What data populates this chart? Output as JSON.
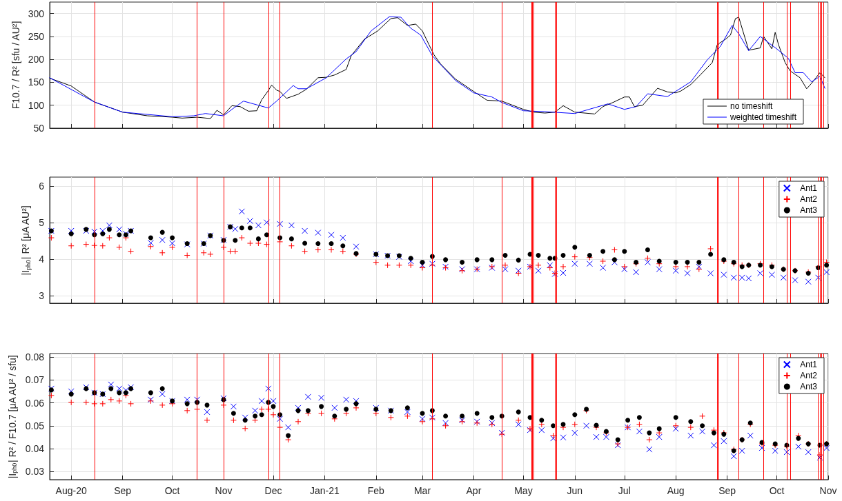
{
  "chart_data": [
    {
      "type": "line",
      "ylabel": "F10.7 / R² [sfu / AU²]",
      "xlim": [
        "2020-07-19",
        "2021-11-01"
      ],
      "ylim": [
        50,
        325
      ],
      "yticks": [
        50,
        100,
        150,
        200,
        250,
        300
      ],
      "xticks": [
        {
          "value": "2020-08-01",
          "label": null
        },
        {
          "value": "2020-09-01",
          "label": null
        },
        {
          "value": "2020-10-01",
          "label": null
        },
        {
          "value": "2020-11-01",
          "label": null
        },
        {
          "value": "2020-12-01",
          "label": null
        },
        {
          "value": "2021-01-01",
          "label": null
        },
        {
          "value": "2021-02-01",
          "label": null
        },
        {
          "value": "2021-03-01",
          "label": null
        },
        {
          "value": "2021-04-01",
          "label": null
        },
        {
          "value": "2021-05-01",
          "label": null
        },
        {
          "value": "2021-06-01",
          "label": null
        },
        {
          "value": "2021-07-01",
          "label": null
        },
        {
          "value": "2021-08-01",
          "label": null
        },
        {
          "value": "2021-09-01",
          "label": null
        },
        {
          "value": "2021-10-01",
          "label": null
        },
        {
          "value": "2021-11-01",
          "label": null
        }
      ],
      "tick_labels": "y",
      "grid": true,
      "legend": "bottom right",
      "marker": "none",
      "line_style": "solid",
      "series": [
        {
          "name": "no timeshift",
          "color": "#000000",
          "x": [
            "2020-07-19",
            "2020-08-01",
            "2020-08-15",
            "2020-09-01",
            "2020-09-16",
            "2020-10-01",
            "2020-10-07",
            "2020-10-16",
            "2020-10-24",
            "2020-10-28",
            "2020-11-01",
            "2020-11-06",
            "2020-11-11",
            "2020-11-16",
            "2020-11-21",
            "2020-11-24",
            "2020-11-28",
            "2020-11-30",
            "2020-12-03",
            "2020-12-05",
            "2020-12-09",
            "2020-12-16",
            "2020-12-21",
            "2020-12-28",
            "2021-01-02",
            "2021-01-07",
            "2021-01-14",
            "2021-01-17",
            "2021-01-25",
            "2021-02-02",
            "2021-02-10",
            "2021-02-14",
            "2021-02-20",
            "2021-02-25",
            "2021-03-01",
            "2021-03-05",
            "2021-03-08",
            "2021-03-12",
            "2021-03-21",
            "2021-04-01",
            "2021-04-09",
            "2021-04-18",
            "2021-05-01",
            "2021-05-07",
            "2021-05-14",
            "2021-05-20",
            "2021-05-25",
            "2021-06-01",
            "2021-06-13",
            "2021-06-18",
            "2021-06-24",
            "2021-07-01",
            "2021-07-04",
            "2021-07-07",
            "2021-07-12",
            "2021-07-21",
            "2021-07-27",
            "2021-08-01",
            "2021-08-04",
            "2021-08-10",
            "2021-08-16",
            "2021-08-23",
            "2021-08-26",
            "2021-08-31",
            "2021-09-03",
            "2021-09-06",
            "2021-09-08",
            "2021-09-14",
            "2021-09-21",
            "2021-09-23",
            "2021-09-28",
            "2021-09-30",
            "2021-10-02",
            "2021-10-06",
            "2021-10-09",
            "2021-10-15",
            "2021-10-19",
            "2021-10-22",
            "2021-10-27",
            "2021-10-30"
          ],
          "values": [
            159,
            142,
            107,
            85,
            77,
            74,
            72,
            74,
            71,
            89,
            79,
            99,
            97,
            87,
            88,
            112,
            132,
            144,
            133,
            130,
            115,
            124,
            135,
            160,
            161,
            166,
            178,
            208,
            244,
            262,
            289,
            291,
            274,
            277,
            262,
            232,
            210,
            190,
            157,
            130,
            111,
            109,
            91,
            85,
            83,
            85,
            99,
            85,
            81,
            97,
            106,
            118,
            118,
            97,
            100,
            137,
            129,
            127,
            131,
            145,
            167,
            193,
            232,
            244,
            253,
            289,
            292,
            220,
            225,
            250,
            223,
            259,
            232,
            193,
            175,
            160,
            136,
            148,
            171,
            160
          ]
        },
        {
          "name": "weighted timeshift",
          "color": "#0000ff",
          "x": [
            "2020-07-19",
            "2020-08-15",
            "2020-09-01",
            "2020-10-01",
            "2020-10-14",
            "2020-10-21",
            "2020-11-01",
            "2020-11-06",
            "2020-11-13",
            "2020-11-19",
            "2020-11-28",
            "2020-12-03",
            "2020-12-13",
            "2020-12-16",
            "2020-12-21",
            "2021-01-02",
            "2021-01-14",
            "2021-01-20",
            "2021-01-29",
            "2021-02-09",
            "2021-02-16",
            "2021-02-22",
            "2021-02-28",
            "2021-03-07",
            "2021-03-21",
            "2021-04-01",
            "2021-04-12",
            "2021-04-18",
            "2021-05-01",
            "2021-05-14",
            "2021-06-01",
            "2021-06-21",
            "2021-07-01",
            "2021-07-08",
            "2021-07-15",
            "2021-07-27",
            "2021-08-10",
            "2021-08-20",
            "2021-08-28",
            "2021-09-04",
            "2021-09-08",
            "2021-09-14",
            "2021-09-21",
            "2021-10-02",
            "2021-10-08",
            "2021-10-12",
            "2021-10-17",
            "2021-10-22",
            "2021-10-27",
            "2021-10-30"
          ],
          "values": [
            160,
            107,
            85,
            75,
            77,
            82,
            77,
            91,
            109,
            103,
            94,
            109,
            143,
            136,
            136,
            160,
            201,
            217,
            262,
            293,
            292,
            268,
            253,
            208,
            154,
            127,
            118,
            106,
            88,
            86,
            82,
            103,
            91,
            97,
            125,
            119,
            151,
            199,
            229,
            274,
            256,
            219,
            250,
            220,
            202,
            171,
            171,
            151,
            163,
            137
          ]
        }
      ],
      "ref_lines": [
        {
          "axis": "x",
          "value": "2020-08-15",
          "color": "#ff0000"
        },
        {
          "axis": "x",
          "value": "2020-10-16",
          "color": "#ff0000"
        },
        {
          "axis": "x",
          "value": "2020-11-01",
          "color": "#ff0000"
        },
        {
          "axis": "x",
          "value": "2020-11-28",
          "color": "#ff0000"
        },
        {
          "axis": "x",
          "value": "2020-12-05",
          "color": "#ff0000"
        },
        {
          "axis": "x",
          "value": "2021-03-07",
          "color": "#ff0000"
        },
        {
          "axis": "x",
          "value": "2021-04-18",
          "color": "#ff0000"
        },
        {
          "axis": "x",
          "value": "2021-05-06",
          "color": "#ff0000"
        },
        {
          "axis": "x",
          "value": "2021-05-06T12:00",
          "color": "#ff0000"
        },
        {
          "axis": "x",
          "value": "2021-05-07",
          "color": "#ff0000"
        },
        {
          "axis": "x",
          "value": "2021-05-20",
          "color": "#ff0000"
        },
        {
          "axis": "x",
          "value": "2021-05-21",
          "color": "#ff0000"
        },
        {
          "axis": "x",
          "value": "2021-08-26",
          "color": "#ff0000"
        },
        {
          "axis": "x",
          "value": "2021-08-27",
          "color": "#ff0000"
        },
        {
          "axis": "x",
          "value": "2021-09-08",
          "color": "#ff0000"
        },
        {
          "axis": "x",
          "value": "2021-09-23",
          "color": "#ff0000"
        },
        {
          "axis": "x",
          "value": "2021-10-07",
          "color": "#ff0000"
        },
        {
          "axis": "x",
          "value": "2021-10-09",
          "color": "#ff0000"
        },
        {
          "axis": "x",
          "value": "2021-10-26",
          "color": "#ff0000"
        },
        {
          "axis": "x",
          "value": "2021-10-27",
          "color": "#ff0000"
        },
        {
          "axis": "x",
          "value": "2021-10-28",
          "color": "#ff0000"
        },
        {
          "axis": "x",
          "value": "2021-10-29",
          "color": "#ff0000"
        }
      ]
    },
    {
      "type": "scatter",
      "ylabel": "|I$_{ph0}$| R² [μA AU²]",
      "xlim": [
        "2020-07-19",
        "2021-11-01"
      ],
      "ylim": [
        2.8,
        6.25
      ],
      "yticks": [
        3,
        4,
        5,
        6
      ],
      "xticks": [
        {
          "value": "2020-08-01",
          "label": null
        },
        {
          "value": "2020-09-01",
          "label": null
        },
        {
          "value": "2020-10-01",
          "label": null
        },
        {
          "value": "2020-11-01",
          "label": null
        },
        {
          "value": "2020-12-01",
          "label": null
        },
        {
          "value": "2021-01-01",
          "label": null
        },
        {
          "value": "2021-02-01",
          "label": null
        },
        {
          "value": "2021-03-01",
          "label": null
        },
        {
          "value": "2021-04-01",
          "label": null
        },
        {
          "value": "2021-05-01",
          "label": null
        },
        {
          "value": "2021-06-01",
          "label": null
        },
        {
          "value": "2021-07-01",
          "label": null
        },
        {
          "value": "2021-08-01",
          "label": null
        },
        {
          "value": "2021-09-01",
          "label": null
        },
        {
          "value": "2021-10-01",
          "label": null
        },
        {
          "value": "2021-11-01",
          "label": null
        }
      ],
      "tick_labels": "y",
      "grid": true,
      "legend": "top right",
      "x": [
        "2020-07-20",
        "2020-08-01",
        "2020-08-10",
        "2020-08-15",
        "2020-08-20",
        "2020-08-24",
        "2020-08-30",
        "2020-09-03",
        "2020-09-06",
        "2020-09-18",
        "2020-09-25",
        "2020-10-01",
        "2020-10-10",
        "2020-10-20",
        "2020-10-24",
        "2020-11-01",
        "2020-11-05",
        "2020-11-08",
        "2020-11-12",
        "2020-11-17",
        "2020-11-22",
        "2020-11-27",
        "2020-12-05",
        "2020-12-12",
        "2020-12-20",
        "2020-12-28",
        "2021-01-05",
        "2021-01-12",
        "2021-01-20",
        "2021-02-01",
        "2021-02-08",
        "2021-02-15",
        "2021-02-22",
        "2021-03-01",
        "2021-03-07",
        "2021-03-15",
        "2021-03-25",
        "2021-04-03",
        "2021-04-12",
        "2021-04-20",
        "2021-04-28",
        "2021-05-05",
        "2021-05-10",
        "2021-05-17",
        "2021-05-20",
        "2021-05-25",
        "2021-06-01",
        "2021-06-10",
        "2021-06-18",
        "2021-06-25",
        "2021-07-01",
        "2021-07-08",
        "2021-07-15",
        "2021-07-22",
        "2021-08-01",
        "2021-08-08",
        "2021-08-15",
        "2021-08-22",
        "2021-08-30",
        "2021-09-05",
        "2021-09-10",
        "2021-09-14",
        "2021-09-21",
        "2021-09-28",
        "2021-10-05",
        "2021-10-12",
        "2021-10-20",
        "2021-10-26",
        "2021-10-31"
      ],
      "series": [
        {
          "name": "Ant1",
          "color": "#0000ff",
          "marker": "x",
          "values": [
            4.78,
            4.78,
            4.78,
            4.76,
            4.78,
            4.93,
            4.82,
            4.7,
            4.78,
            4.45,
            4.53,
            4.44,
            4.41,
            4.43,
            4.65,
            4.53,
            4.89,
            4.83,
            5.31,
            5.05,
            4.93,
            5.01,
            4.97,
            4.93,
            4.78,
            4.73,
            4.67,
            4.59,
            4.35,
            4.14,
            4.1,
            4.07,
            3.95,
            3.84,
            3.88,
            3.8,
            3.73,
            3.73,
            3.77,
            3.73,
            3.69,
            3.8,
            3.69,
            3.84,
            3.6,
            3.63,
            3.88,
            3.88,
            3.77,
            3.92,
            3.73,
            3.65,
            3.92,
            3.73,
            3.69,
            3.62,
            3.8,
            3.62,
            3.58,
            3.5,
            3.5,
            3.48,
            3.62,
            3.58,
            3.5,
            3.43,
            3.39,
            3.5,
            3.65
          ]
        },
        {
          "name": "Ant2",
          "color": "#ff0000",
          "marker": "cross",
          "values": [
            4.59,
            4.37,
            4.41,
            4.38,
            4.37,
            4.59,
            4.33,
            4.59,
            4.22,
            4.35,
            4.18,
            4.33,
            4.11,
            4.18,
            4.14,
            4.33,
            4.22,
            4.22,
            4.59,
            4.44,
            4.44,
            4.41,
            4.48,
            4.37,
            4.22,
            4.26,
            4.26,
            4.22,
            4.14,
            3.92,
            3.84,
            3.84,
            3.84,
            3.77,
            3.84,
            3.77,
            3.69,
            3.73,
            3.8,
            3.84,
            3.62,
            3.8,
            3.84,
            3.77,
            3.62,
            3.8,
            4.07,
            4.05,
            3.95,
            4.26,
            3.8,
            3.88,
            4.03,
            3.88,
            3.8,
            3.8,
            3.73,
            4.29,
            3.95,
            3.88,
            3.84,
            3.84,
            3.88,
            3.84,
            3.73,
            3.69,
            3.65,
            3.8,
            3.92
          ]
        },
        {
          "name": "Ant3",
          "color": "#000000",
          "marker": "circle",
          "values": [
            4.78,
            4.7,
            4.82,
            4.67,
            4.7,
            4.82,
            4.67,
            4.67,
            4.78,
            4.59,
            4.74,
            4.59,
            4.43,
            4.43,
            4.65,
            4.52,
            4.89,
            4.52,
            4.86,
            4.86,
            4.56,
            4.67,
            4.59,
            4.56,
            4.44,
            4.43,
            4.43,
            4.37,
            4.16,
            4.14,
            4.1,
            4.1,
            4.03,
            3.92,
            4.08,
            3.99,
            3.92,
            3.99,
            3.99,
            4.11,
            3.98,
            4.14,
            4.11,
            4.03,
            4.03,
            4.11,
            4.33,
            4.11,
            4.22,
            3.99,
            4.22,
            3.92,
            4.26,
            3.95,
            3.92,
            3.92,
            3.92,
            4.14,
            3.99,
            3.92,
            3.8,
            3.84,
            3.84,
            3.8,
            3.73,
            3.69,
            3.62,
            3.77,
            3.84
          ]
        }
      ],
      "ref_lines": [
        {
          "axis": "x",
          "value": "2020-08-15",
          "color": "#ff0000"
        },
        {
          "axis": "x",
          "value": "2020-10-16",
          "color": "#ff0000"
        },
        {
          "axis": "x",
          "value": "2020-11-01",
          "color": "#ff0000"
        },
        {
          "axis": "x",
          "value": "2020-11-28",
          "color": "#ff0000"
        },
        {
          "axis": "x",
          "value": "2020-12-05",
          "color": "#ff0000"
        },
        {
          "axis": "x",
          "value": "2021-03-07",
          "color": "#ff0000"
        },
        {
          "axis": "x",
          "value": "2021-04-18",
          "color": "#ff0000"
        },
        {
          "axis": "x",
          "value": "2021-05-06",
          "color": "#ff0000"
        },
        {
          "axis": "x",
          "value": "2021-05-06T12:00",
          "color": "#ff0000"
        },
        {
          "axis": "x",
          "value": "2021-05-07",
          "color": "#ff0000"
        },
        {
          "axis": "x",
          "value": "2021-05-20",
          "color": "#ff0000"
        },
        {
          "axis": "x",
          "value": "2021-05-21",
          "color": "#ff0000"
        },
        {
          "axis": "x",
          "value": "2021-08-26",
          "color": "#ff0000"
        },
        {
          "axis": "x",
          "value": "2021-08-27",
          "color": "#ff0000"
        },
        {
          "axis": "x",
          "value": "2021-09-08",
          "color": "#ff0000"
        },
        {
          "axis": "x",
          "value": "2021-09-23",
          "color": "#ff0000"
        },
        {
          "axis": "x",
          "value": "2021-10-07",
          "color": "#ff0000"
        },
        {
          "axis": "x",
          "value": "2021-10-09",
          "color": "#ff0000"
        },
        {
          "axis": "x",
          "value": "2021-10-26",
          "color": "#ff0000"
        },
        {
          "axis": "x",
          "value": "2021-10-27",
          "color": "#ff0000"
        },
        {
          "axis": "x",
          "value": "2021-10-28",
          "color": "#ff0000"
        },
        {
          "axis": "x",
          "value": "2021-10-29",
          "color": "#ff0000"
        }
      ]
    },
    {
      "type": "scatter",
      "ylabel": "|I$_{ph0}$| R² / F10.7 [μA AU² / sfu]",
      "xlim": [
        "2020-07-19",
        "2021-11-01"
      ],
      "ylim": [
        0.0265,
        0.0815
      ],
      "yticks": [
        0.03,
        0.04,
        0.05,
        0.06,
        0.07,
        0.08
      ],
      "xticks": [
        {
          "value": "2020-08-01",
          "label": "Aug-20"
        },
        {
          "value": "2020-09-01",
          "label": "Sep"
        },
        {
          "value": "2020-10-01",
          "label": "Oct"
        },
        {
          "value": "2020-11-01",
          "label": "Nov"
        },
        {
          "value": "2020-12-01",
          "label": "Dec"
        },
        {
          "value": "2021-01-01",
          "label": "Jan-21"
        },
        {
          "value": "2021-02-01",
          "label": "Feb"
        },
        {
          "value": "2021-03-01",
          "label": "Mar"
        },
        {
          "value": "2021-04-01",
          "label": "Apr"
        },
        {
          "value": "2021-05-01",
          "label": "May"
        },
        {
          "value": "2021-06-01",
          "label": "Jun"
        },
        {
          "value": "2021-07-01",
          "label": "Jul"
        },
        {
          "value": "2021-08-01",
          "label": "Aug"
        },
        {
          "value": "2021-09-01",
          "label": "Sep"
        },
        {
          "value": "2021-10-01",
          "label": "Oct"
        },
        {
          "value": "2021-11-01",
          "label": "Nov"
        }
      ],
      "grid": true,
      "legend": "top right",
      "x": [
        "2020-07-20",
        "2020-08-01",
        "2020-08-10",
        "2020-08-15",
        "2020-08-20",
        "2020-08-25",
        "2020-08-30",
        "2020-09-03",
        "2020-09-06",
        "2020-09-18",
        "2020-09-25",
        "2020-10-01",
        "2020-10-10",
        "2020-10-16",
        "2020-10-22",
        "2020-11-01",
        "2020-11-07",
        "2020-11-14",
        "2020-11-20",
        "2020-11-24",
        "2020-11-28",
        "2020-12-01",
        "2020-12-05",
        "2020-12-10",
        "2020-12-16",
        "2020-12-22",
        "2020-12-30",
        "2021-01-07",
        "2021-01-14",
        "2021-01-20",
        "2021-02-01",
        "2021-02-10",
        "2021-02-20",
        "2021-03-01",
        "2021-03-07",
        "2021-03-15",
        "2021-03-25",
        "2021-04-03",
        "2021-04-12",
        "2021-04-18",
        "2021-04-28",
        "2021-05-05",
        "2021-05-12",
        "2021-05-19",
        "2021-05-25",
        "2021-06-01",
        "2021-06-08",
        "2021-06-14",
        "2021-06-20",
        "2021-06-27",
        "2021-07-03",
        "2021-07-10",
        "2021-07-16",
        "2021-07-22",
        "2021-08-01",
        "2021-08-10",
        "2021-08-17",
        "2021-08-24",
        "2021-08-30",
        "2021-09-05",
        "2021-09-10",
        "2021-09-15",
        "2021-09-22",
        "2021-09-30",
        "2021-10-07",
        "2021-10-14",
        "2021-10-20",
        "2021-10-27",
        "2021-10-31"
      ],
      "series": [
        {
          "name": "Ant1",
          "color": "#0000ff",
          "marker": "x",
          "values": [
            0.0662,
            0.065,
            0.0668,
            0.0644,
            0.0638,
            0.068,
            0.0662,
            0.0655,
            0.0668,
            0.0614,
            0.0638,
            0.0608,
            0.0614,
            0.0614,
            0.056,
            0.062,
            0.0584,
            0.0536,
            0.0566,
            0.0608,
            0.0662,
            0.0608,
            0.053,
            0.0493,
            0.0578,
            0.0626,
            0.0622,
            0.0578,
            0.0614,
            0.0608,
            0.0578,
            0.0566,
            0.056,
            0.053,
            0.0536,
            0.0512,
            0.0524,
            0.0518,
            0.0512,
            0.0469,
            0.0506,
            0.0481,
            0.0481,
            0.0445,
            0.0449,
            0.0469,
            0.05,
            0.0451,
            0.0451,
            0.0415,
            0.0493,
            0.0475,
            0.0397,
            0.0451,
            0.0487,
            0.0457,
            0.0475,
            0.0415,
            0.0433,
            0.0367,
            0.0391,
            0.0457,
            0.0403,
            0.0391,
            0.0385,
            0.0409,
            0.0385,
            0.0361,
            0.0403
          ]
        },
        {
          "name": "Ant2",
          "color": "#ff0000",
          "marker": "cross",
          "values": [
            0.0632,
            0.0602,
            0.0602,
            0.0596,
            0.0596,
            0.0614,
            0.0608,
            0.0632,
            0.0596,
            0.0608,
            0.059,
            0.0596,
            0.0566,
            0.0572,
            0.0524,
            0.059,
            0.0524,
            0.0488,
            0.0524,
            0.0572,
            0.0572,
            0.0548,
            0.0493,
            0.0439,
            0.0518,
            0.0554,
            0.0554,
            0.053,
            0.0554,
            0.0578,
            0.0554,
            0.0536,
            0.0542,
            0.0518,
            0.053,
            0.05,
            0.0518,
            0.0512,
            0.0506,
            0.0463,
            0.0524,
            0.0487,
            0.0506,
            0.0457,
            0.0493,
            0.0506,
            0.0566,
            0.0493,
            0.0469,
            0.0421,
            0.0493,
            0.0506,
            0.0439,
            0.0469,
            0.05,
            0.0493,
            0.0542,
            0.0481,
            0.0469,
            0.0397,
            0.0439,
            0.0506,
            0.0421,
            0.0415,
            0.0409,
            0.0457,
            0.0421,
            0.0373,
            0.0421
          ]
        },
        {
          "name": "Ant3",
          "color": "#000000",
          "marker": "circle",
          "values": [
            0.0656,
            0.0638,
            0.0662,
            0.0644,
            0.0638,
            0.0662,
            0.0644,
            0.0644,
            0.0662,
            0.0644,
            0.0662,
            0.0608,
            0.0596,
            0.0602,
            0.059,
            0.0614,
            0.0554,
            0.0524,
            0.0542,
            0.0548,
            0.0602,
            0.0584,
            0.0548,
            0.0457,
            0.0566,
            0.0566,
            0.0584,
            0.0542,
            0.0572,
            0.0596,
            0.0572,
            0.0566,
            0.0578,
            0.0554,
            0.0566,
            0.0542,
            0.0542,
            0.0554,
            0.0536,
            0.0542,
            0.056,
            0.0536,
            0.0524,
            0.05,
            0.0506,
            0.0548,
            0.0572,
            0.0502,
            0.0475,
            0.0439,
            0.0524,
            0.0536,
            0.0469,
            0.0487,
            0.0536,
            0.0518,
            0.05,
            0.0469,
            0.0463,
            0.0391,
            0.0439,
            0.0512,
            0.0427,
            0.0421,
            0.0415,
            0.0445,
            0.0421,
            0.0415,
            0.0421
          ]
        }
      ],
      "ref_lines": [
        {
          "axis": "x",
          "value": "2020-08-15",
          "color": "#ff0000"
        },
        {
          "axis": "x",
          "value": "2020-10-16",
          "color": "#ff0000"
        },
        {
          "axis": "x",
          "value": "2020-11-01",
          "color": "#ff0000"
        },
        {
          "axis": "x",
          "value": "2020-11-28",
          "color": "#ff0000"
        },
        {
          "axis": "x",
          "value": "2020-12-05",
          "color": "#ff0000"
        },
        {
          "axis": "x",
          "value": "2021-03-07",
          "color": "#ff0000"
        },
        {
          "axis": "x",
          "value": "2021-04-18",
          "color": "#ff0000"
        },
        {
          "axis": "x",
          "value": "2021-05-06",
          "color": "#ff0000"
        },
        {
          "axis": "x",
          "value": "2021-05-06T12:00",
          "color": "#ff0000"
        },
        {
          "axis": "x",
          "value": "2021-05-07",
          "color": "#ff0000"
        },
        {
          "axis": "x",
          "value": "2021-05-20",
          "color": "#ff0000"
        },
        {
          "axis": "x",
          "value": "2021-05-21",
          "color": "#ff0000"
        },
        {
          "axis": "x",
          "value": "2021-08-26",
          "color": "#ff0000"
        },
        {
          "axis": "x",
          "value": "2021-08-27",
          "color": "#ff0000"
        },
        {
          "axis": "x",
          "value": "2021-09-08",
          "color": "#ff0000"
        },
        {
          "axis": "x",
          "value": "2021-09-23",
          "color": "#ff0000"
        },
        {
          "axis": "x",
          "value": "2021-10-07",
          "color": "#ff0000"
        },
        {
          "axis": "x",
          "value": "2021-10-09",
          "color": "#ff0000"
        },
        {
          "axis": "x",
          "value": "2021-10-26",
          "color": "#ff0000"
        },
        {
          "axis": "x",
          "value": "2021-10-27",
          "color": "#ff0000"
        },
        {
          "axis": "x",
          "value": "2021-10-28",
          "color": "#ff0000"
        },
        {
          "axis": "x",
          "value": "2021-10-29",
          "color": "#ff0000"
        }
      ]
    }
  ]
}
